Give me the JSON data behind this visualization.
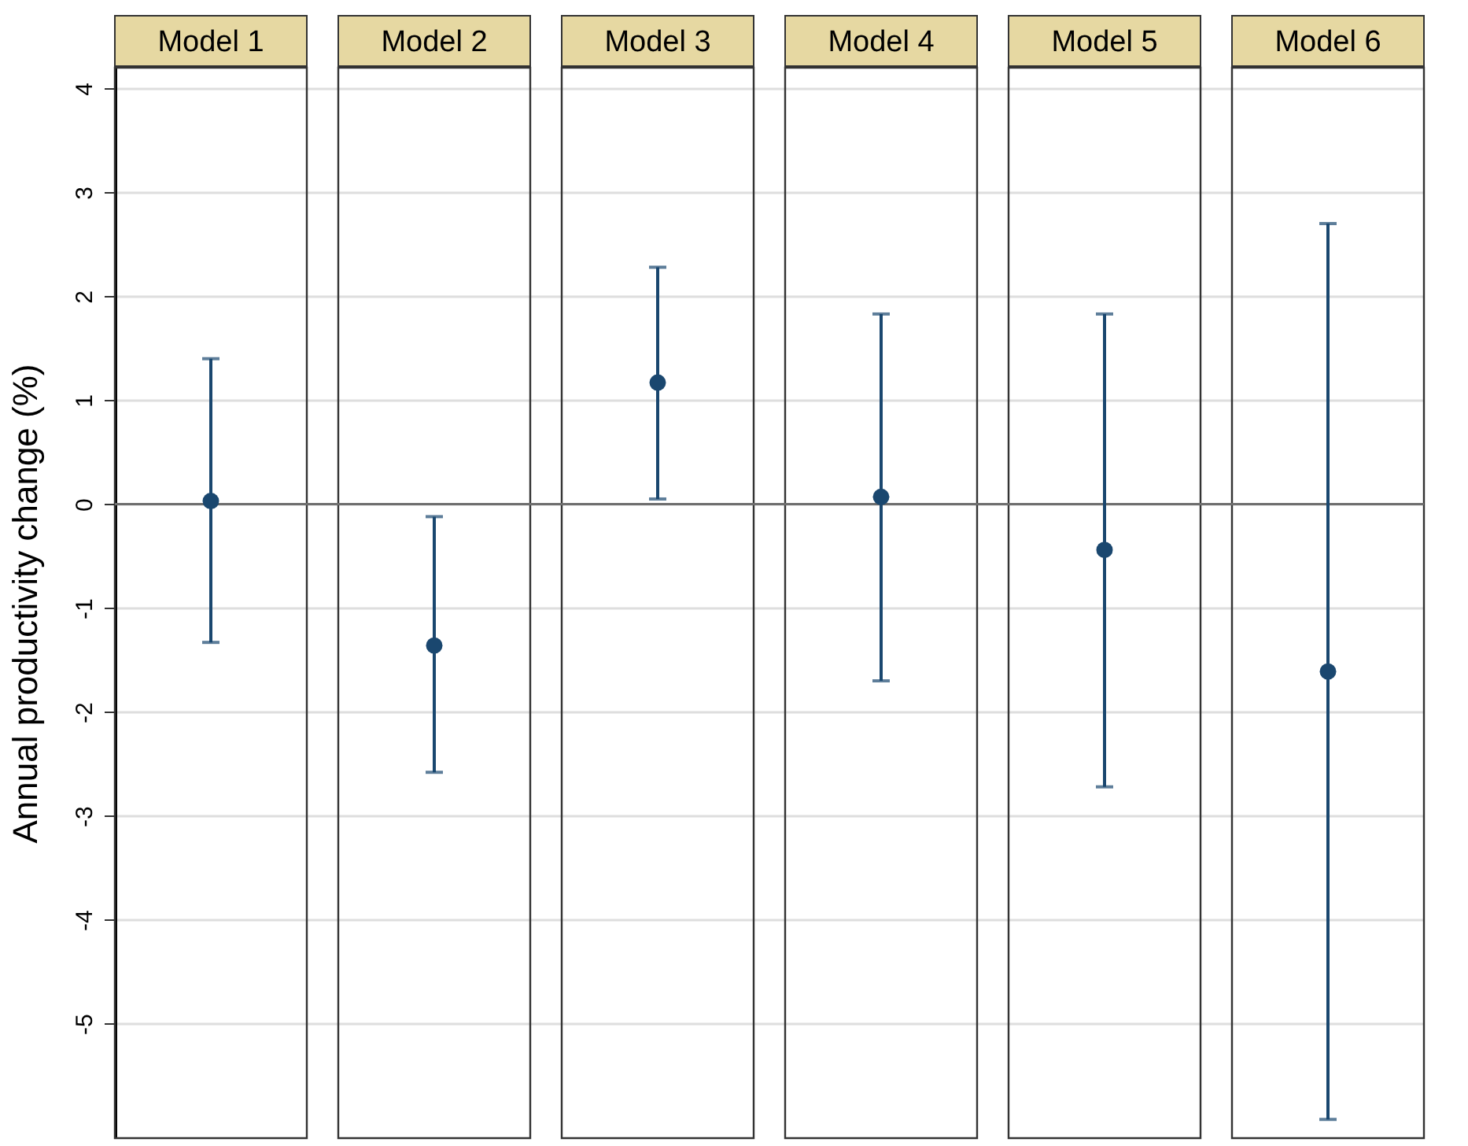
{
  "chart_data": {
    "type": "scatter",
    "ylabel": "Annual productivity change (%)",
    "categories": [
      "Model 1",
      "Model 2",
      "Model 3",
      "Model 4",
      "Model 5",
      "Model 6"
    ],
    "values": [
      0.03,
      -1.36,
      1.17,
      0.07,
      -0.44,
      -1.61
    ],
    "errors": [
      [
        -1.33,
        1.4
      ],
      [
        -2.58,
        -0.12
      ],
      [
        0.05,
        2.28
      ],
      [
        -1.7,
        1.83
      ],
      [
        -2.72,
        1.83
      ],
      [
        -5.92,
        2.7
      ]
    ],
    "color": "#1a476f",
    "marker": "circle",
    "ylim": [
      -6.1,
      4.2
    ],
    "yticks": [
      4,
      3,
      2,
      1,
      0,
      -1,
      -2,
      -3,
      -4,
      -5
    ],
    "grid": "y",
    "ref_lines": [
      {
        "axis": "y",
        "value": 0,
        "color": "#6e6e6e"
      }
    ]
  }
}
